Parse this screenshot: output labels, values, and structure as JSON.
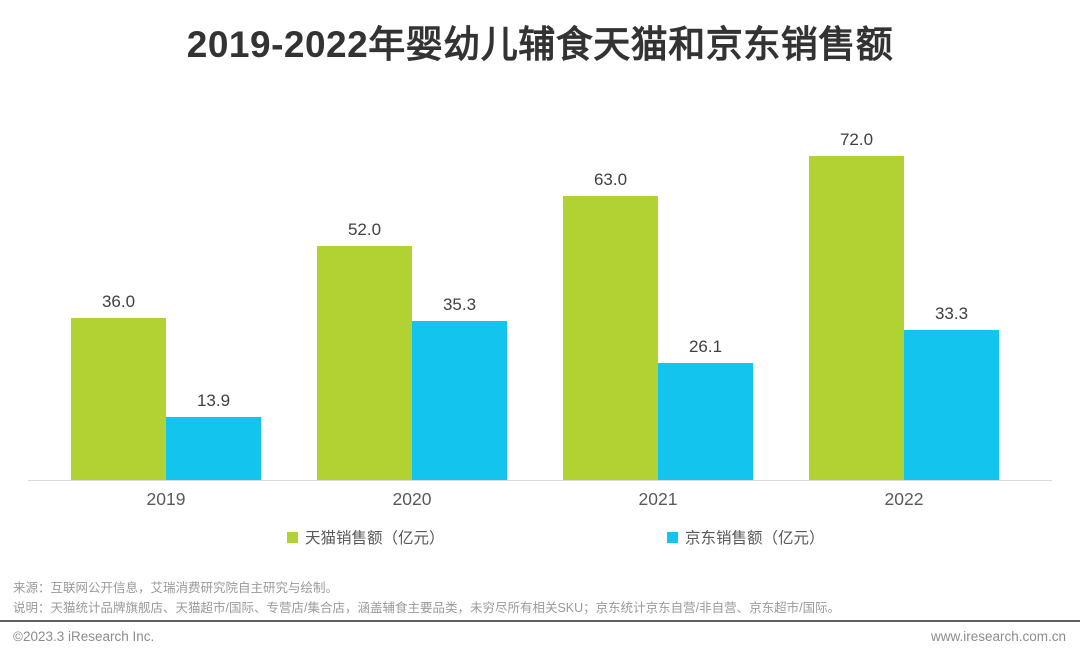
{
  "title": "2019-2022年婴幼儿辅食天猫和京东销售额",
  "chart_data": {
    "type": "bar",
    "categories": [
      "2019",
      "2020",
      "2021",
      "2022"
    ],
    "series": [
      {
        "name": "天猫销售额（亿元）",
        "color": "#b2d233",
        "values": [
          36.0,
          52.0,
          63.0,
          72.0
        ]
      },
      {
        "name": "京东销售额（亿元）",
        "color": "#13c5ee",
        "values": [
          13.9,
          35.3,
          26.1,
          33.3
        ]
      }
    ],
    "title": "2019-2022年婴幼儿辅食天猫和京东销售额",
    "xlabel": "",
    "ylabel": "",
    "ylim": [
      0,
      82
    ],
    "grid": false,
    "legend_position": "bottom",
    "value_labels": "one_decimal"
  },
  "footer": {
    "source": "来源：互联网公开信息，艾瑞消费研究院自主研究与绘制。",
    "note": "说明：天猫统计品牌旗舰店、天猫超市/国际、专营店/集合店，涵盖辅食主要品类，未穷尽所有相关SKU；京东统计京东自营/非自营、京东超市/国际。",
    "copyright": "©2023.3 iResearch Inc.",
    "website": "www.iresearch.com.cn"
  }
}
